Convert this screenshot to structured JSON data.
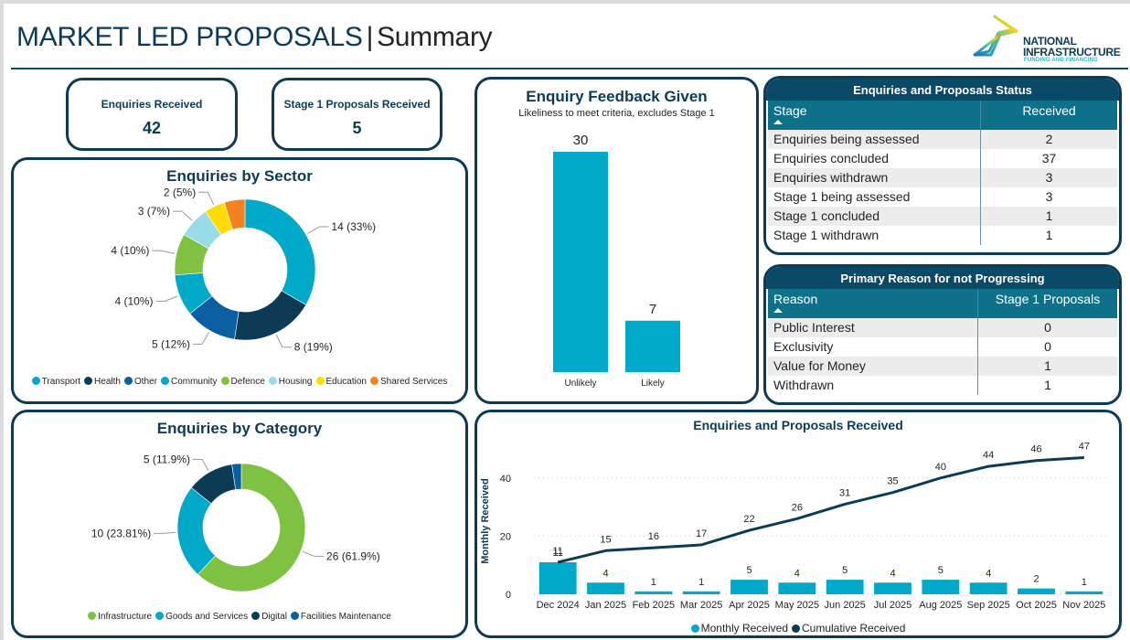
{
  "header": {
    "title": "MARKET LED PROPOSALS",
    "separator": "|",
    "subtitle": "Summary",
    "logo_line1": "NATIONAL",
    "logo_line2": "INFRASTRUCTURE",
    "logo_line3": "FUNDING AND FINANCING"
  },
  "colors": {
    "navy": "#0d3b55",
    "teal": "#00a9c7",
    "table_title_bg": "#0b4a66",
    "table_header_bg": "#0f7089"
  },
  "kpis": [
    {
      "label": "Enquiries Received",
      "value": "42"
    },
    {
      "label": "Stage 1 Proposals Received",
      "value": "5"
    }
  ],
  "sector": {
    "title": "Enquiries by Sector",
    "chart_data": {
      "type": "pie",
      "variant": "donut",
      "title": "Enquiries by Sector",
      "categories": [
        "Transport",
        "Health",
        "Other",
        "Community",
        "Defence",
        "Housing",
        "Education",
        "Shared Services"
      ],
      "values": [
        14,
        8,
        5,
        4,
        4,
        3,
        2,
        2
      ],
      "labels": [
        "14 (33%)",
        "8 (19%)",
        "5 (12%)",
        "4 (10%)",
        "4 (10%)",
        "3 (7%)",
        "2 (5%)",
        ""
      ],
      "colors": [
        "#00a9c7",
        "#0d3b55",
        "#0a5fa3",
        "#00a9c7",
        "#7fc241",
        "#9adbe8",
        "#ffdd00",
        "#f58220"
      ],
      "legend_position": "bottom"
    }
  },
  "feedback": {
    "title": "Enquiry Feedback Given",
    "subtitle": "Likeliness to meet criteria, excludes Stage 1",
    "chart_data": {
      "type": "bar",
      "title": "Enquiry Feedback Given",
      "subtitle": "Likeliness to meet criteria, excludes Stage 1",
      "categories": [
        "Unlikely",
        "Likely"
      ],
      "values": [
        30,
        7
      ],
      "data_labels": [
        "30",
        "7"
      ],
      "ylim": [
        0,
        30
      ],
      "grid": false,
      "color": "#00a9c7"
    }
  },
  "status_table": {
    "title": "Enquiries and Proposals Status",
    "columns": [
      "Stage",
      "Received"
    ],
    "rows": [
      [
        "Enquiries being assessed",
        "2"
      ],
      [
        "Enquiries concluded",
        "37"
      ],
      [
        "Enquiries withdrawn",
        "3"
      ],
      [
        "Stage 1 being assessed",
        "3"
      ],
      [
        "Stage 1 concluded",
        "1"
      ],
      [
        "Stage 1 withdrawn",
        "1"
      ]
    ]
  },
  "reason_table": {
    "title": "Primary Reason for not Progressing",
    "columns": [
      "Reason",
      "Stage 1 Proposals"
    ],
    "rows": [
      [
        "Public Interest",
        "0"
      ],
      [
        "Exclusivity",
        "0"
      ],
      [
        "Value for Money",
        "1"
      ],
      [
        "Withdrawn",
        "1"
      ]
    ]
  },
  "category": {
    "title": "Enquiries by Category",
    "chart_data": {
      "type": "pie",
      "variant": "donut",
      "title": "Enquiries by Category",
      "categories": [
        "Infrastructure",
        "Goods and Services",
        "Digital",
        "Facilities Maintenance"
      ],
      "values": [
        26,
        10,
        5,
        1
      ],
      "labels": [
        "26 (61.9%)",
        "10 (23.81%)",
        "5 (11.9%)",
        ""
      ],
      "colors": [
        "#7fc241",
        "#00a9c7",
        "#0d3b55",
        "#0a5fa3"
      ],
      "legend_position": "bottom"
    }
  },
  "received": {
    "title": "Enquiries and Proposals Received",
    "chart_data": {
      "type": "bar",
      "combo": "bar+line",
      "title": "Enquiries and Proposals Received",
      "xlabel": "",
      "ylabel": "Monthly Received",
      "categories": [
        "Dec 2024",
        "Jan 2025",
        "Feb 2025",
        "Mar 2025",
        "Apr 2025",
        "May 2025",
        "Jun 2025",
        "Jul 2025",
        "Aug 2025",
        "Sep 2025",
        "Oct 2025",
        "Nov 2025"
      ],
      "series": [
        {
          "name": "Monthly Received",
          "type": "bar",
          "color": "#00a9c7",
          "values": [
            11,
            4,
            1,
            1,
            5,
            4,
            5,
            4,
            5,
            4,
            2,
            1
          ]
        },
        {
          "name": "Cumulative Received",
          "type": "line",
          "color": "#0d3b55",
          "values": [
            11,
            15,
            16,
            17,
            22,
            26,
            31,
            35,
            40,
            44,
            46,
            47
          ]
        }
      ],
      "yticks": [
        "0",
        "20",
        "40"
      ],
      "ylim": [
        0,
        50
      ],
      "grid": true,
      "legend_position": "bottom"
    }
  }
}
